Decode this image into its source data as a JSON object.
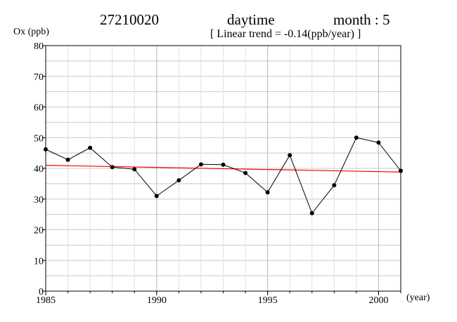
{
  "header": {
    "station": "27210020",
    "period": "daytime",
    "month": "month : 5",
    "trend_label": "[ Linear trend = -0.14(ppb/year) ]"
  },
  "chart_data": {
    "type": "line",
    "title": "",
    "ylabel": "Ox (ppb)",
    "xlabel": "(year)",
    "xlim": [
      1985,
      2001
    ],
    "ylim": [
      0,
      80
    ],
    "xticks": [
      1985,
      1990,
      1995,
      2000
    ],
    "yticks": [
      0,
      10,
      20,
      30,
      40,
      50,
      60,
      70,
      80
    ],
    "grid": true,
    "series": [
      {
        "x": [
          1985,
          1986,
          1987,
          1988,
          1989,
          1990,
          1991,
          1992,
          1993,
          1994,
          1995,
          1996,
          1997,
          1998,
          1999,
          2000,
          2001
        ],
        "values": [
          46.2,
          42.8,
          46.7,
          40.4,
          39.7,
          31.0,
          36.1,
          41.3,
          41.2,
          38.5,
          32.2,
          44.3,
          25.4,
          34.5,
          50.0,
          48.4,
          39.2
        ],
        "color": "#000000"
      }
    ],
    "trend": {
      "slope": -0.14,
      "y_start": 41.0,
      "y_end": 38.8,
      "color": "#ff0000"
    }
  }
}
